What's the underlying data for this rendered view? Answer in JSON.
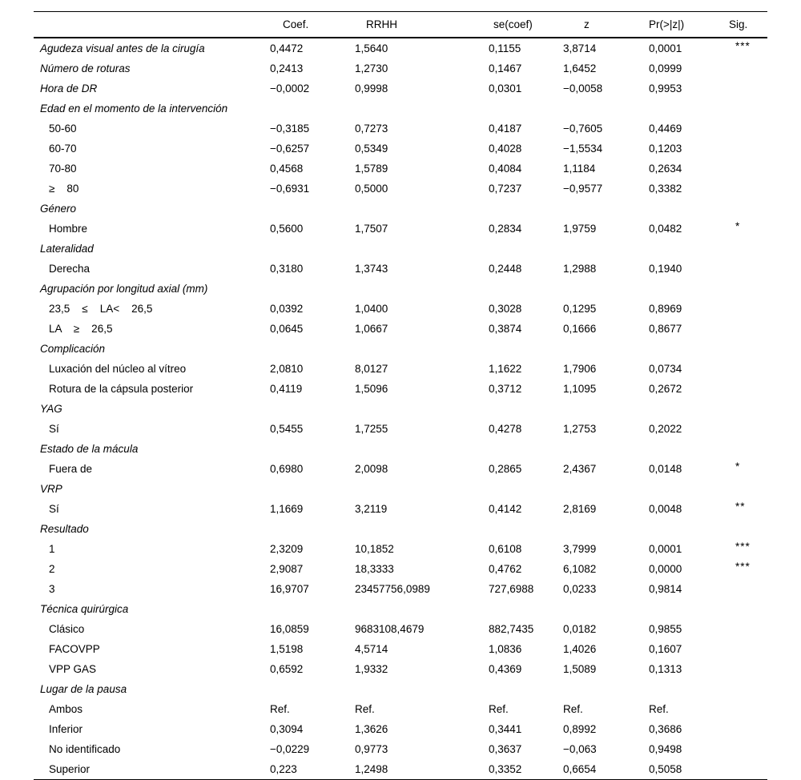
{
  "page": {
    "background_color": "#ffffff",
    "text_color": "#000000",
    "rule_color": "#000000"
  },
  "table": {
    "columns": {
      "label": "",
      "coef": "Coef.",
      "rrhh": "RRHH",
      "se": "se(coef)",
      "z": "z",
      "pr": "Pr(>|z|)",
      "sig": "Sig."
    },
    "rows": [
      {
        "label": "Agudeza visual antes de la cirugía",
        "italic": true,
        "indent": false,
        "coef": "0,4472",
        "rrhh": "1,5640",
        "se": "0,1155",
        "z": "3,8714",
        "pr": "0,0001",
        "sig": "***"
      },
      {
        "label": "Número de roturas",
        "italic": true,
        "indent": false,
        "coef": "0,2413",
        "rrhh": "1,2730",
        "se": "0,1467",
        "z": "1,6452",
        "pr": "0,0999",
        "sig": ""
      },
      {
        "label": "Hora de DR",
        "italic": true,
        "indent": false,
        "coef": "−0,0002",
        "rrhh": "0,9998",
        "se": "0,0301",
        "z": "−0,0058",
        "pr": "0,9953",
        "sig": ""
      },
      {
        "label": "Edad en el momento de la intervención",
        "italic": true,
        "indent": false
      },
      {
        "label": "50-60",
        "italic": false,
        "indent": true,
        "coef": "−0,3185",
        "rrhh": "0,7273",
        "se": "0,4187",
        "z": "−0,7605",
        "pr": "0,4469",
        "sig": ""
      },
      {
        "label": "60-70",
        "italic": false,
        "indent": true,
        "coef": "−0,6257",
        "rrhh": "0,5349",
        "se": "0,4028",
        "z": "−1,5534",
        "pr": "0,1203",
        "sig": ""
      },
      {
        "label": "70-80",
        "italic": false,
        "indent": true,
        "coef": "0,4568",
        "rrhh": "1,5789",
        "se": "0,4084",
        "z": "1,1184",
        "pr": "0,2634",
        "sig": ""
      },
      {
        "label": "≥    80",
        "italic": false,
        "indent": true,
        "coef": "−0,6931",
        "rrhh": "0,5000",
        "se": "0,7237",
        "z": "−0,9577",
        "pr": "0,3382",
        "sig": ""
      },
      {
        "label": "Género",
        "italic": true,
        "indent": false
      },
      {
        "label": "Hombre",
        "italic": false,
        "indent": true,
        "coef": "0,5600",
        "rrhh": "1,7507",
        "se": "0,2834",
        "z": "1,9759",
        "pr": "0,0482",
        "sig": "*"
      },
      {
        "label": "Lateralidad",
        "italic": true,
        "indent": false
      },
      {
        "label": "Derecha",
        "italic": false,
        "indent": true,
        "coef": "0,3180",
        "rrhh": "1,3743",
        "se": "0,2448",
        "z": "1,2988",
        "pr": "0,1940",
        "sig": ""
      },
      {
        "label": "Agrupación por longitud axial (mm)",
        "italic": true,
        "indent": false
      },
      {
        "label": "23,5    ≤    LA<    26,5",
        "italic": false,
        "indent": true,
        "coef": "0,0392",
        "rrhh": "1,0400",
        "se": "0,3028",
        "z": "0,1295",
        "pr": "0,8969",
        "sig": ""
      },
      {
        "label": "LA    ≥    26,5",
        "italic": false,
        "indent": true,
        "coef": "0,0645",
        "rrhh": "1,0667",
        "se": "0,3874",
        "z": "0,1666",
        "pr": "0,8677",
        "sig": ""
      },
      {
        "label": "Complicación",
        "italic": true,
        "indent": false
      },
      {
        "label": "Luxación del núcleo al vítreo",
        "italic": false,
        "indent": true,
        "coef": "2,0810",
        "rrhh": "8,0127",
        "se": "1,1622",
        "z": "1,7906",
        "pr": "0,0734",
        "sig": ""
      },
      {
        "label": "Rotura de la cápsula posterior",
        "italic": false,
        "indent": true,
        "coef": "0,4119",
        "rrhh": "1,5096",
        "se": "0,3712",
        "z": "1,1095",
        "pr": "0,2672",
        "sig": ""
      },
      {
        "label": "YAG",
        "italic": true,
        "indent": false
      },
      {
        "label": "Sí",
        "italic": false,
        "indent": true,
        "coef": "0,5455",
        "rrhh": "1,7255",
        "se": "0,4278",
        "z": "1,2753",
        "pr": "0,2022",
        "sig": ""
      },
      {
        "label": "Estado de la mácula",
        "italic": true,
        "indent": false
      },
      {
        "label": "Fuera de",
        "italic": false,
        "indent": true,
        "coef": "0,6980",
        "rrhh": "2,0098",
        "se": "0,2865",
        "z": "2,4367",
        "pr": "0,0148",
        "sig": "*"
      },
      {
        "label": "VRP",
        "italic": true,
        "indent": false
      },
      {
        "label": "Sí",
        "italic": false,
        "indent": true,
        "coef": "1,1669",
        "rrhh": "3,2119",
        "se": "0,4142",
        "z": "2,8169",
        "pr": "0,0048",
        "sig": "**"
      },
      {
        "label": "Resultado",
        "italic": true,
        "indent": false
      },
      {
        "label": "1",
        "italic": false,
        "indent": true,
        "coef": "2,3209",
        "rrhh": "10,1852",
        "se": "0,6108",
        "z": "3,7999",
        "pr": "0,0001",
        "sig": "***"
      },
      {
        "label": "2",
        "italic": false,
        "indent": true,
        "coef": "2,9087",
        "rrhh": "18,3333",
        "se": "0,4762",
        "z": "6,1082",
        "pr": "0,0000",
        "sig": "***"
      },
      {
        "label": "3",
        "italic": false,
        "indent": true,
        "coef": "16,9707",
        "rrhh": "23457756,0989",
        "se": "727,6988",
        "z": "0,0233",
        "pr": "0,9814",
        "sig": ""
      },
      {
        "label": "Técnica quirúrgica",
        "italic": true,
        "indent": false
      },
      {
        "label": "Clásico",
        "italic": false,
        "indent": true,
        "coef": "16,0859",
        "rrhh": "9683108,4679",
        "se": "882,7435",
        "z": "0,0182",
        "pr": "0,9855",
        "sig": ""
      },
      {
        "label": "FACOVPP",
        "italic": false,
        "indent": true,
        "coef": "1,5198",
        "rrhh": "4,5714",
        "se": "1,0836",
        "z": "1,4026",
        "pr": "0,1607",
        "sig": ""
      },
      {
        "label": "VPP GAS",
        "italic": false,
        "indent": true,
        "coef": "0,6592",
        "rrhh": "1,9332",
        "se": "0,4369",
        "z": "1,5089",
        "pr": "0,1313",
        "sig": ""
      },
      {
        "label": "Lugar de la pausa",
        "italic": true,
        "indent": false
      },
      {
        "label": "Ambos",
        "italic": false,
        "indent": true,
        "coef": "Ref.",
        "rrhh": "Ref.",
        "se": "Ref.",
        "z": "Ref.",
        "pr": "Ref.",
        "sig": ""
      },
      {
        "label": "Inferior",
        "italic": false,
        "indent": true,
        "coef": "0,3094",
        "rrhh": "1,3626",
        "se": "0,3441",
        "z": "0,8992",
        "pr": "0,3686",
        "sig": ""
      },
      {
        "label": "No identificado",
        "italic": false,
        "indent": true,
        "coef": "−0,0229",
        "rrhh": "0,9773",
        "se": "0,3637",
        "z": "−0,063",
        "pr": "0,9498",
        "sig": ""
      },
      {
        "label": "Superior",
        "italic": false,
        "indent": true,
        "coef": "0,223",
        "rrhh": "1,2498",
        "se": "0,3352",
        "z": "0,6654",
        "pr": "0,5058",
        "sig": ""
      }
    ]
  }
}
